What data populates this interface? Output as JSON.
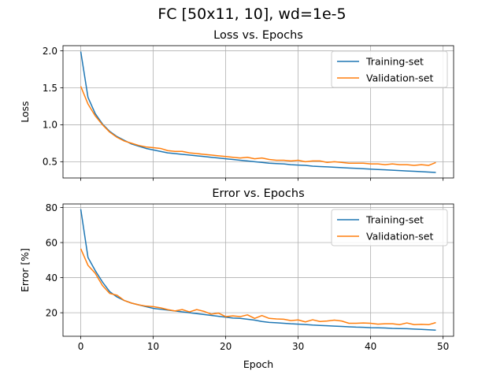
{
  "figure": {
    "suptitle": "FC [50x11, 10], wd=1e-5",
    "colors": {
      "train": "#1f77b4",
      "valid": "#ff7f0e",
      "grid": "#b0b0b0"
    }
  },
  "chart_data": [
    {
      "type": "line",
      "title": "Loss vs. Epochs",
      "xlabel": "",
      "ylabel": "Loss",
      "xlim": [
        -2.45,
        51.45
      ],
      "ylim": [
        0.28,
        2.07
      ],
      "xticks": [
        0,
        10,
        20,
        30,
        40,
        50
      ],
      "yticks": [
        0.5,
        1.0,
        1.5,
        2.0
      ],
      "ytick_labels": [
        "0.5",
        "1.0",
        "1.5",
        "2.0"
      ],
      "show_xtick_labels": false,
      "grid": true,
      "legend": "upper right",
      "x": [
        0,
        1,
        2,
        3,
        4,
        5,
        6,
        7,
        8,
        9,
        10,
        11,
        12,
        13,
        14,
        15,
        16,
        17,
        18,
        19,
        20,
        21,
        22,
        23,
        24,
        25,
        26,
        27,
        28,
        29,
        30,
        31,
        32,
        33,
        34,
        35,
        36,
        37,
        38,
        39,
        40,
        41,
        42,
        43,
        44,
        45,
        46,
        47,
        48,
        49
      ],
      "series": [
        {
          "name": "Training-set",
          "color_key": "train",
          "values": [
            1.99,
            1.37,
            1.15,
            1.01,
            0.91,
            0.84,
            0.79,
            0.74,
            0.71,
            0.68,
            0.66,
            0.64,
            0.62,
            0.61,
            0.6,
            0.59,
            0.58,
            0.57,
            0.56,
            0.55,
            0.54,
            0.53,
            0.52,
            0.51,
            0.5,
            0.49,
            0.48,
            0.475,
            0.47,
            0.46,
            0.455,
            0.45,
            0.44,
            0.435,
            0.43,
            0.425,
            0.42,
            0.415,
            0.41,
            0.405,
            0.4,
            0.395,
            0.39,
            0.385,
            0.38,
            0.375,
            0.37,
            0.365,
            0.36,
            0.355
          ]
        },
        {
          "name": "Validation-set",
          "color_key": "valid",
          "values": [
            1.52,
            1.28,
            1.12,
            1.0,
            0.9,
            0.83,
            0.78,
            0.75,
            0.72,
            0.7,
            0.69,
            0.68,
            0.65,
            0.64,
            0.64,
            0.62,
            0.61,
            0.6,
            0.59,
            0.58,
            0.57,
            0.56,
            0.55,
            0.56,
            0.54,
            0.55,
            0.53,
            0.52,
            0.52,
            0.51,
            0.52,
            0.5,
            0.51,
            0.51,
            0.49,
            0.5,
            0.49,
            0.48,
            0.48,
            0.48,
            0.47,
            0.47,
            0.46,
            0.47,
            0.46,
            0.46,
            0.45,
            0.46,
            0.45,
            0.49
          ]
        }
      ]
    },
    {
      "type": "line",
      "title": "Error vs. Epochs",
      "xlabel": "Epoch",
      "ylabel": "Error [%]",
      "xlim": [
        -2.45,
        51.45
      ],
      "ylim": [
        6.6,
        82.0
      ],
      "xticks": [
        0,
        10,
        20,
        30,
        40,
        50
      ],
      "xtick_labels": [
        "0",
        "10",
        "20",
        "30",
        "40",
        "50"
      ],
      "yticks": [
        20,
        40,
        60,
        80
      ],
      "ytick_labels": [
        "20",
        "40",
        "60",
        "80"
      ],
      "show_xtick_labels": true,
      "grid": true,
      "legend": "upper right",
      "x": [
        0,
        1,
        2,
        3,
        4,
        5,
        6,
        7,
        8,
        9,
        10,
        11,
        12,
        13,
        14,
        15,
        16,
        17,
        18,
        19,
        20,
        21,
        22,
        23,
        24,
        25,
        26,
        27,
        28,
        29,
        30,
        31,
        32,
        33,
        34,
        35,
        36,
        37,
        38,
        39,
        40,
        41,
        42,
        43,
        44,
        45,
        46,
        47,
        48,
        49
      ],
      "series": [
        {
          "name": "Training-set",
          "color_key": "train",
          "values": [
            79.0,
            51.5,
            44.0,
            37.5,
            32.0,
            29.0,
            27.0,
            25.5,
            24.5,
            23.5,
            22.5,
            22.0,
            21.5,
            21.0,
            20.5,
            20.0,
            19.5,
            19.0,
            18.5,
            18.0,
            17.5,
            17.0,
            16.8,
            16.3,
            15.8,
            15.0,
            14.5,
            14.3,
            14.0,
            13.7,
            13.5,
            13.3,
            13.0,
            12.8,
            12.6,
            12.4,
            12.2,
            12.0,
            11.8,
            11.7,
            11.5,
            11.4,
            11.3,
            11.1,
            11.0,
            10.9,
            10.7,
            10.5,
            10.3,
            10.1
          ]
        },
        {
          "name": "Validation-set",
          "color_key": "valid",
          "values": [
            56.5,
            47.0,
            42.5,
            35.5,
            31.0,
            30.0,
            27.0,
            25.5,
            24.5,
            23.8,
            23.5,
            22.8,
            21.8,
            21.0,
            21.8,
            20.5,
            21.8,
            20.8,
            19.2,
            19.8,
            17.8,
            18.2,
            17.8,
            18.8,
            16.8,
            18.4,
            16.8,
            16.5,
            16.3,
            15.5,
            15.9,
            14.8,
            16.0,
            15.0,
            15.3,
            15.8,
            15.3,
            14.0,
            14.0,
            14.2,
            14.0,
            13.5,
            13.7,
            13.7,
            13.2,
            14.2,
            13.2,
            13.4,
            13.2,
            14.4
          ]
        }
      ]
    }
  ]
}
